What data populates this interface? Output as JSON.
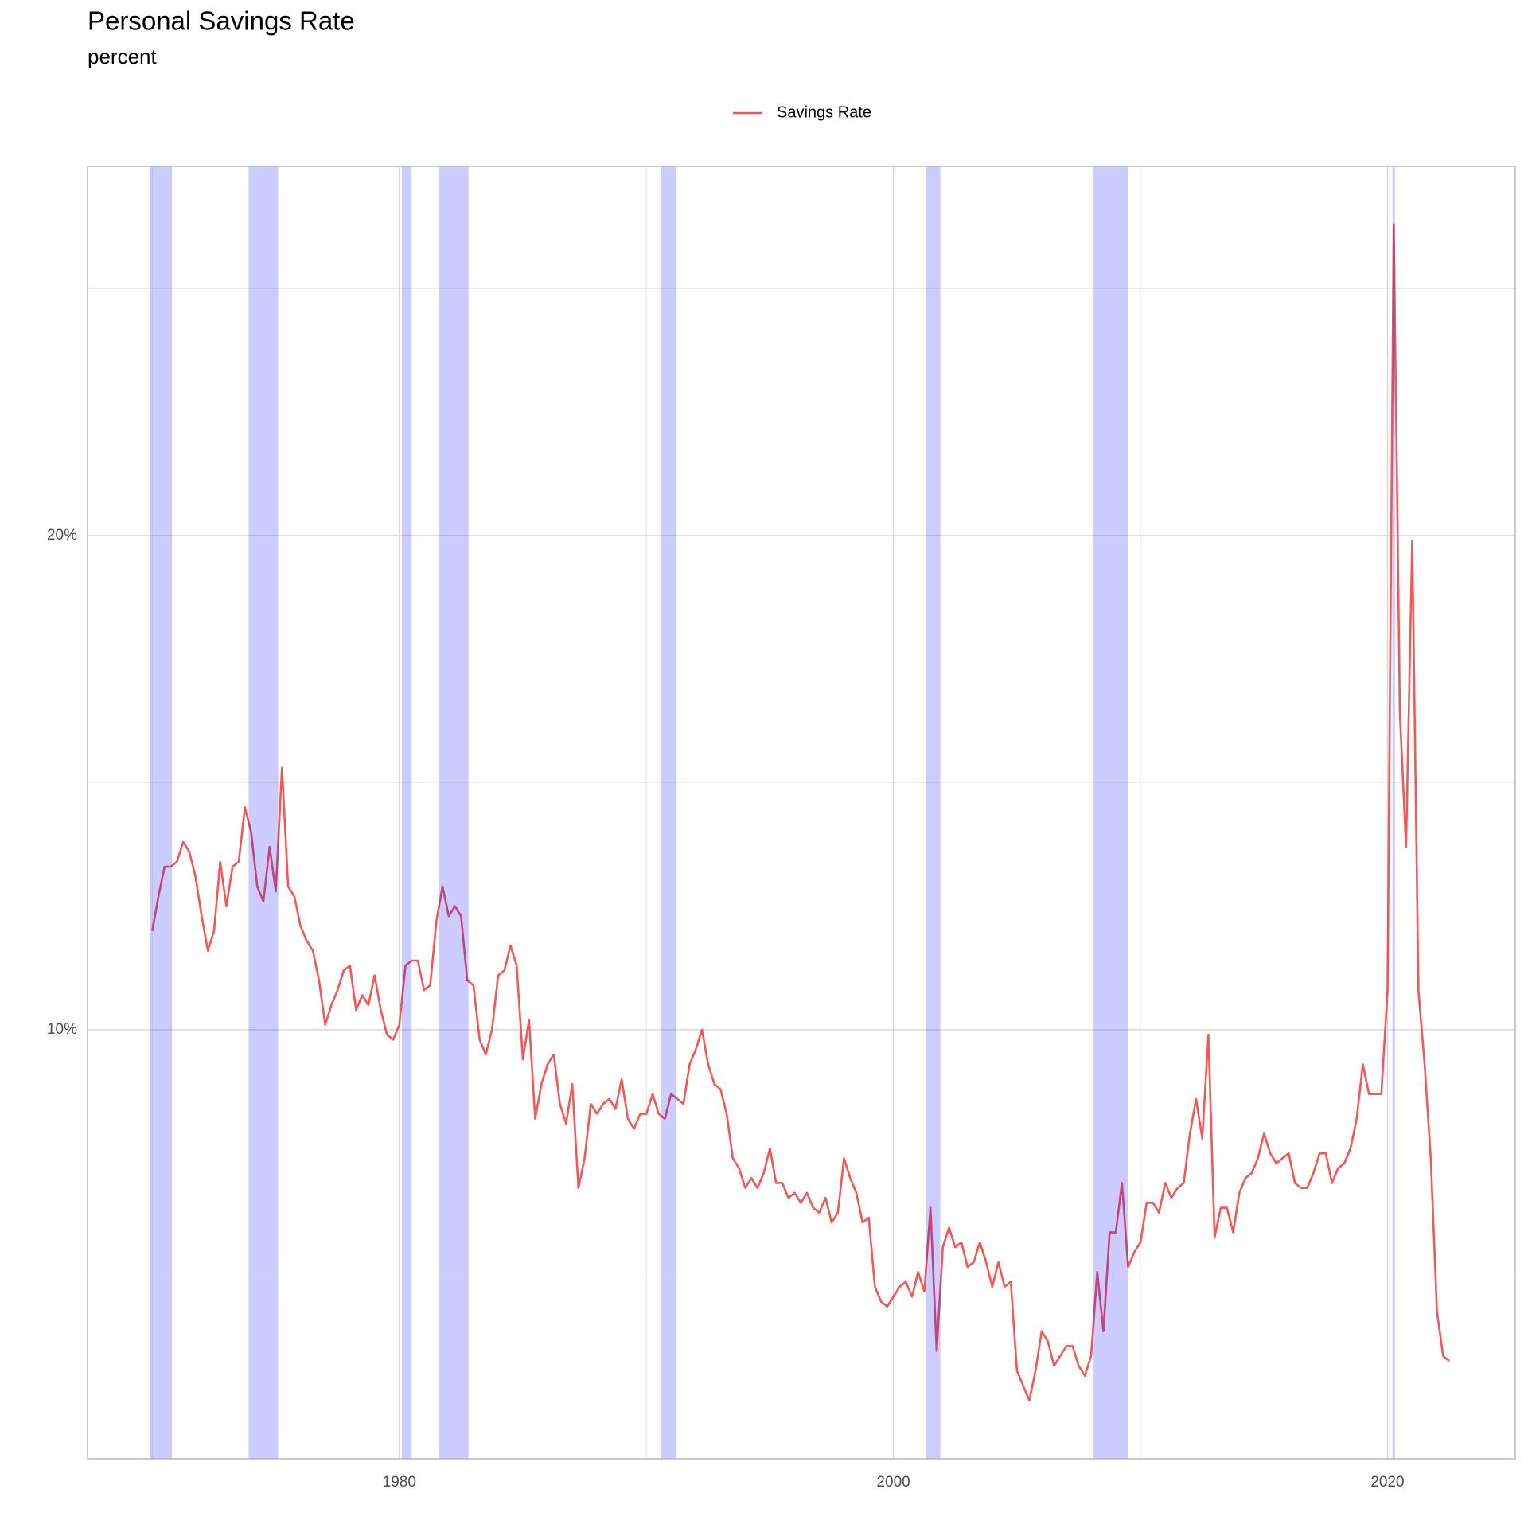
{
  "chart_data": {
    "type": "line",
    "title": "Personal Savings Rate",
    "subtitle": "percent",
    "x": [
      1970,
      1970.25,
      1970.5,
      1970.75,
      1971,
      1971.25,
      1971.5,
      1971.75,
      1972,
      1972.25,
      1972.5,
      1972.75,
      1973,
      1973.25,
      1973.5,
      1973.75,
      1974,
      1974.25,
      1974.5,
      1974.75,
      1975,
      1975.25,
      1975.5,
      1975.75,
      1976,
      1976.25,
      1976.5,
      1976.75,
      1977,
      1977.25,
      1977.5,
      1977.75,
      1978,
      1978.25,
      1978.5,
      1978.75,
      1979,
      1979.25,
      1979.5,
      1979.75,
      1980,
      1980.25,
      1980.5,
      1980.75,
      1981,
      1981.25,
      1981.5,
      1981.75,
      1982,
      1982.25,
      1982.5,
      1982.75,
      1983,
      1983.25,
      1983.5,
      1983.75,
      1984,
      1984.25,
      1984.5,
      1984.75,
      1985,
      1985.25,
      1985.5,
      1985.75,
      1986,
      1986.25,
      1986.5,
      1986.75,
      1987,
      1987.25,
      1987.5,
      1987.75,
      1988,
      1988.25,
      1988.5,
      1988.75,
      1989,
      1989.25,
      1989.5,
      1989.75,
      1990,
      1990.25,
      1990.5,
      1990.75,
      1991,
      1991.25,
      1991.5,
      1991.75,
      1992,
      1992.25,
      1992.5,
      1992.75,
      1993,
      1993.25,
      1993.5,
      1993.75,
      1994,
      1994.25,
      1994.5,
      1994.75,
      1995,
      1995.25,
      1995.5,
      1995.75,
      1996,
      1996.25,
      1996.5,
      1996.75,
      1997,
      1997.25,
      1997.5,
      1997.75,
      1998,
      1998.25,
      1998.5,
      1998.75,
      1999,
      1999.25,
      1999.5,
      1999.75,
      2000,
      2000.25,
      2000.5,
      2000.75,
      2001,
      2001.25,
      2001.5,
      2001.75,
      2002,
      2002.25,
      2002.5,
      2002.75,
      2003,
      2003.25,
      2003.5,
      2003.75,
      2004,
      2004.25,
      2004.5,
      2004.75,
      2005,
      2005.25,
      2005.5,
      2005.75,
      2006,
      2006.25,
      2006.5,
      2006.75,
      2007,
      2007.25,
      2007.5,
      2007.75,
      2008,
      2008.25,
      2008.5,
      2008.75,
      2009,
      2009.25,
      2009.5,
      2009.75,
      2010,
      2010.25,
      2010.5,
      2010.75,
      2011,
      2011.25,
      2011.5,
      2011.75,
      2012,
      2012.25,
      2012.5,
      2012.75,
      2013,
      2013.25,
      2013.5,
      2013.75,
      2014,
      2014.25,
      2014.5,
      2014.75,
      2015,
      2015.25,
      2015.5,
      2015.75,
      2016,
      2016.25,
      2016.5,
      2016.75,
      2017,
      2017.25,
      2017.5,
      2017.75,
      2018,
      2018.25,
      2018.5,
      2018.75,
      2019,
      2019.25,
      2019.5,
      2019.75,
      2020,
      2020.25,
      2020.5,
      2020.75,
      2021,
      2021.25,
      2021.5,
      2021.75,
      2022,
      2022.25,
      2022.5
    ],
    "series": [
      {
        "name": "Savings Rate",
        "color": "#ee3b3b",
        "values": [
          12.0,
          12.7,
          13.3,
          13.3,
          13.4,
          13.8,
          13.6,
          13.1,
          12.3,
          11.6,
          12.0,
          13.4,
          12.5,
          13.3,
          13.4,
          14.5,
          14.0,
          12.9,
          12.6,
          13.7,
          12.8,
          15.3,
          12.9,
          12.7,
          12.1,
          11.8,
          11.6,
          11.0,
          10.1,
          10.5,
          10.8,
          11.2,
          11.3,
          10.4,
          10.7,
          10.5,
          11.1,
          10.4,
          9.9,
          9.8,
          10.1,
          11.3,
          11.4,
          11.4,
          10.8,
          10.9,
          12.2,
          12.9,
          12.3,
          12.5,
          12.3,
          11.0,
          10.9,
          9.8,
          9.5,
          10.0,
          11.1,
          11.2,
          11.7,
          11.3,
          9.4,
          10.2,
          8.2,
          8.9,
          9.3,
          9.5,
          8.5,
          8.1,
          8.9,
          6.8,
          7.4,
          8.5,
          8.3,
          8.5,
          8.6,
          8.4,
          9.0,
          8.2,
          8.0,
          8.3,
          8.3,
          8.7,
          8.3,
          8.2,
          8.7,
          8.6,
          8.5,
          9.3,
          9.6,
          10.0,
          9.3,
          8.9,
          8.8,
          8.3,
          7.4,
          7.2,
          6.8,
          7.0,
          6.8,
          7.1,
          7.6,
          6.9,
          6.9,
          6.6,
          6.7,
          6.5,
          6.7,
          6.4,
          6.3,
          6.6,
          6.1,
          6.3,
          7.4,
          7.0,
          6.7,
          6.1,
          6.2,
          4.8,
          4.5,
          4.4,
          4.6,
          4.8,
          4.9,
          4.6,
          5.1,
          4.7,
          6.4,
          3.5,
          5.6,
          6.0,
          5.6,
          5.7,
          5.2,
          5.3,
          5.7,
          5.3,
          4.8,
          5.3,
          4.8,
          4.9,
          3.1,
          2.8,
          2.5,
          3.1,
          3.9,
          3.7,
          3.2,
          3.4,
          3.6,
          3.6,
          3.2,
          3.0,
          3.4,
          5.1,
          3.9,
          5.9,
          5.9,
          6.9,
          5.2,
          5.5,
          5.7,
          6.5,
          6.5,
          6.3,
          6.9,
          6.6,
          6.8,
          6.9,
          7.9,
          8.6,
          7.8,
          9.9,
          5.8,
          6.4,
          6.4,
          5.9,
          6.7,
          7.0,
          7.1,
          7.4,
          7.9,
          7.5,
          7.3,
          7.4,
          7.5,
          6.9,
          6.8,
          6.8,
          7.1,
          7.5,
          7.5,
          6.9,
          7.2,
          7.3,
          7.6,
          8.2,
          9.3,
          8.7,
          8.7,
          8.7,
          10.8,
          26.3,
          16.4,
          13.7,
          19.9,
          10.8,
          9.3,
          7.4,
          4.3,
          3.4,
          3.3
        ]
      }
    ],
    "recessions": [
      [
        1969.9,
        1970.8
      ],
      [
        1973.9,
        1975.1
      ],
      [
        1980.1,
        1980.5
      ],
      [
        1981.6,
        1982.8
      ],
      [
        1990.6,
        1991.2
      ],
      [
        2001.3,
        2001.9
      ],
      [
        2008.1,
        2009.5
      ],
      [
        2020.2,
        2020.3
      ]
    ],
    "recession_color": "#0000ff",
    "xlim": [
      1967.38,
      2025.17
    ],
    "ylim": [
      1.32,
      27.47
    ],
    "xticks": [
      1980,
      2000,
      2020
    ],
    "xminor": [
      1970,
      1990,
      2010
    ],
    "yticks": [
      {
        "value": 10,
        "label": "10%"
      },
      {
        "value": 20,
        "label": "20%"
      }
    ],
    "yminor": [
      5,
      15,
      25
    ],
    "grid": true,
    "legend": "top"
  }
}
